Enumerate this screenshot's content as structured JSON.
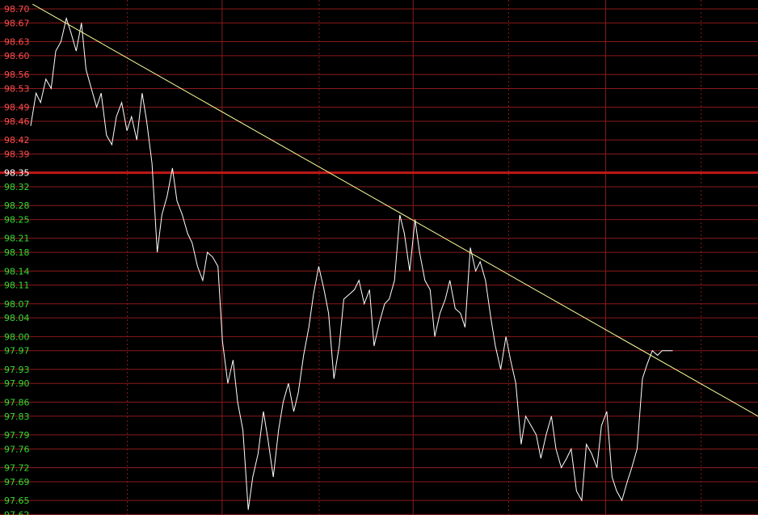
{
  "chart_data": {
    "type": "line",
    "title": "",
    "xlabel": "",
    "ylabel": "",
    "ylim": [
      97.62,
      98.71
    ],
    "reference_value": 98.35,
    "y_ticks": [
      "98.70",
      "98.67",
      "98.63",
      "98.60",
      "98.56",
      "98.53",
      "98.49",
      "98.46",
      "98.42",
      "98.39",
      "98.35",
      "98.32",
      "98.28",
      "98.25",
      "98.21",
      "98.18",
      "98.14",
      "98.11",
      "98.07",
      "98.04",
      "98.00",
      "97.97",
      "97.93",
      "97.90",
      "97.86",
      "97.83",
      "97.79",
      "97.76",
      "97.72",
      "97.69",
      "97.65",
      "97.62"
    ],
    "y_tick_values": [
      98.7,
      98.67,
      98.63,
      98.6,
      98.56,
      98.53,
      98.49,
      98.46,
      98.42,
      98.39,
      98.35,
      98.32,
      98.28,
      98.25,
      98.21,
      98.18,
      98.14,
      98.11,
      98.07,
      98.04,
      98.0,
      97.97,
      97.93,
      97.9,
      97.86,
      97.83,
      97.79,
      97.76,
      97.72,
      97.69,
      97.65,
      97.62
    ],
    "x_range": [
      0,
      1
    ],
    "x_grid": [
      0.168,
      0.293,
      0.421,
      0.545,
      0.671,
      0.799,
      0.925
    ],
    "x_grid_major": [
      0.293,
      0.545,
      0.799
    ],
    "series": [
      {
        "x": [
          0.0,
          0.007,
          0.013,
          0.02,
          0.027,
          0.033,
          0.04,
          0.047,
          0.053,
          0.06,
          0.067,
          0.073,
          0.08,
          0.087,
          0.093,
          0.1,
          0.107,
          0.113,
          0.12,
          0.127,
          0.133,
          0.14,
          0.147,
          0.153,
          0.16,
          0.167,
          0.173,
          0.18,
          0.187,
          0.193,
          0.2,
          0.207,
          0.213,
          0.22,
          0.227,
          0.233,
          0.24,
          0.247,
          0.253,
          0.26,
          0.267,
          0.273,
          0.28,
          0.287,
          0.293,
          0.3,
          0.307,
          0.313,
          0.32,
          0.327,
          0.333,
          0.34,
          0.347,
          0.353,
          0.36,
          0.367,
          0.373,
          0.38,
          0.387,
          0.393,
          0.4,
          0.407,
          0.413,
          0.42,
          0.427,
          0.433,
          0.44,
          0.447,
          0.453,
          0.46,
          0.467,
          0.473,
          0.48,
          0.487,
          0.493,
          0.5,
          0.507,
          0.513,
          0.52,
          0.527,
          0.533,
          0.54,
          0.547,
          0.553,
          0.56,
          0.567,
          0.573,
          0.58,
          0.587,
          0.593,
          0.6,
          0.607,
          0.613,
          0.62,
          0.627,
          0.633,
          0.64,
          0.647,
          0.653,
          0.66,
          0.667,
          0.673,
          0.68,
          0.687,
          0.693,
          0.7,
          0.707,
          0.713,
          0.72,
          0.727,
          0.733,
          0.74,
          0.747,
          0.753,
          0.76,
          0.767,
          0.773,
          0.78,
          0.787,
          0.793,
          0.8,
          0.807,
          0.813,
          0.82,
          0.827,
          0.833,
          0.84,
          0.847
        ],
        "y": [
          98.45,
          98.52,
          98.5,
          98.55,
          98.53,
          98.61,
          98.63,
          98.68,
          98.65,
          98.61,
          98.67,
          98.57,
          98.53,
          98.49,
          98.52,
          98.43,
          98.41,
          98.47,
          98.5,
          98.44,
          98.47,
          98.42,
          98.52,
          98.46,
          98.37,
          98.18,
          98.26,
          98.3,
          98.36,
          98.29,
          98.26,
          98.22,
          98.2,
          98.15,
          98.12,
          98.18,
          98.17,
          98.15,
          97.99,
          97.9,
          97.95,
          97.86,
          97.8,
          97.63,
          97.7,
          97.75,
          97.84,
          97.78,
          97.7,
          97.8,
          97.86,
          97.9,
          97.84,
          97.88,
          97.96,
          98.02,
          98.09,
          98.15,
          98.1,
          98.05,
          97.91,
          97.98,
          98.08,
          98.09,
          98.1,
          98.12,
          98.07,
          98.1,
          97.98,
          98.03,
          98.07,
          98.08,
          98.12,
          98.26,
          98.22,
          98.14,
          98.25,
          98.18,
          98.12,
          98.1,
          98.0,
          98.05,
          98.08,
          98.12,
          98.06,
          98.05,
          98.02,
          98.19,
          98.14,
          98.16,
          98.12,
          98.04,
          97.98,
          97.93,
          98.0,
          97.95,
          97.9,
          97.77,
          97.83,
          97.81,
          97.79,
          97.74,
          97.79,
          97.83,
          97.76,
          97.72,
          97.74,
          97.76,
          97.67,
          97.65,
          97.77,
          97.75,
          97.72,
          97.81,
          97.84,
          97.7,
          97.67,
          97.65,
          97.69,
          97.72,
          97.76,
          97.91,
          97.94,
          97.97,
          97.96,
          97.97,
          97.97,
          97.97
        ],
        "color": "#ffffff"
      }
    ],
    "trendline": {
      "x": [
        0.043,
        1.0
      ],
      "y": [
        98.71,
        97.83
      ],
      "color": "#ffff99"
    },
    "colors": {
      "background": "#000000",
      "grid": "#8b1a1a",
      "reference_line": "#c01818",
      "tick_above": "#ff4d4d",
      "tick_reference": "#ffffff",
      "tick_below": "#33dd33"
    }
  }
}
